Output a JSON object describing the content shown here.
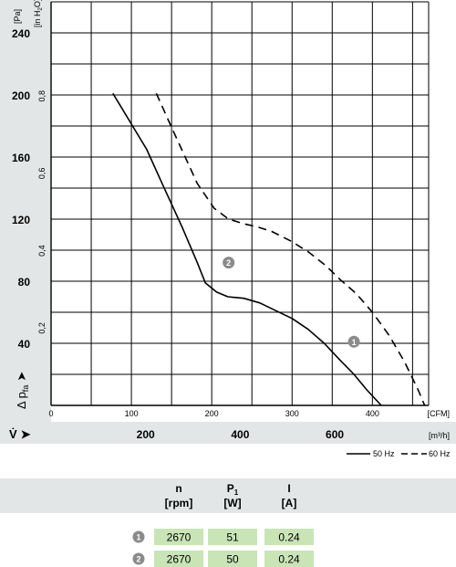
{
  "chart_data": {
    "type": "line",
    "y_axis_left": {
      "label_main": "Δ p",
      "label_sub": "fa",
      "unit": "[Pa]",
      "ticks": [
        "40",
        "80",
        "120",
        "160",
        "200",
        "240"
      ],
      "range": [
        0,
        260
      ]
    },
    "y_axis_inner": {
      "unit": "[in H",
      "unit_sub": "2",
      "unit_end": "O]",
      "ticks": [
        "0,2",
        "0,4",
        "0,6",
        "0,8"
      ]
    },
    "x_axis_cfm": {
      "unit": "[CFM]",
      "ticks": [
        "0",
        "100",
        "200",
        "300",
        "400"
      ],
      "range": [
        0,
        470
      ]
    },
    "x_axis_m3h": {
      "label": "V̇",
      "unit": "[m³/h]",
      "ticks": [
        "200",
        "400",
        "600"
      ]
    },
    "series": [
      {
        "name": "50 Hz",
        "style": "solid",
        "points": [
          [
            77,
            201
          ],
          [
            119,
            165
          ],
          [
            140,
            141
          ],
          [
            163,
            115
          ],
          [
            182,
            92
          ],
          [
            192,
            79
          ],
          [
            206,
            73
          ],
          [
            220,
            70
          ],
          [
            240,
            69
          ],
          [
            260,
            66
          ],
          [
            280,
            61
          ],
          [
            300,
            56
          ],
          [
            320,
            49
          ],
          [
            340,
            40
          ],
          [
            360,
            29
          ],
          [
            377,
            20
          ],
          [
            393,
            10
          ],
          [
            411,
            0
          ]
        ],
        "marker": {
          "label": "1",
          "x": 377,
          "y": 41
        }
      },
      {
        "name": "60 Hz",
        "style": "dashed",
        "points": [
          [
            131,
            201
          ],
          [
            151,
            178
          ],
          [
            182,
            143
          ],
          [
            203,
            127
          ],
          [
            221,
            120
          ],
          [
            240,
            117
          ],
          [
            257,
            115
          ],
          [
            275,
            112
          ],
          [
            298,
            106
          ],
          [
            320,
            99
          ],
          [
            342,
            90
          ],
          [
            360,
            81
          ],
          [
            380,
            72
          ],
          [
            400,
            60
          ],
          [
            421,
            45
          ],
          [
            440,
            28
          ],
          [
            457,
            10
          ],
          [
            465,
            0
          ]
        ]
      },
      {
        "name": "50 Hz marker",
        "style": "none",
        "points": [],
        "marker": {
          "label": "2",
          "x": 221,
          "y": 92
        }
      }
    ],
    "legend": [
      {
        "label": "50 Hz",
        "style": "solid"
      },
      {
        "label": "60 Hz",
        "style": "dashed"
      }
    ],
    "grid": true
  },
  "table": {
    "headers": [
      {
        "top": "n",
        "top_sub": "",
        "unit": "[rpm]"
      },
      {
        "top": "P",
        "top_sub": "1",
        "unit": "[W]"
      },
      {
        "top": "I",
        "top_sub": "",
        "unit": "[A]"
      }
    ],
    "rows": [
      {
        "marker": "1",
        "values": [
          "2670",
          "51",
          "0.24"
        ]
      },
      {
        "marker": "2",
        "values": [
          "2670",
          "50",
          "0.24"
        ]
      }
    ]
  },
  "colors": {
    "panel_bg": "#e3e6e6",
    "cell_bg": "#c9e5b6",
    "marker_bg": "#8a8a8a",
    "grid": "#000000"
  }
}
